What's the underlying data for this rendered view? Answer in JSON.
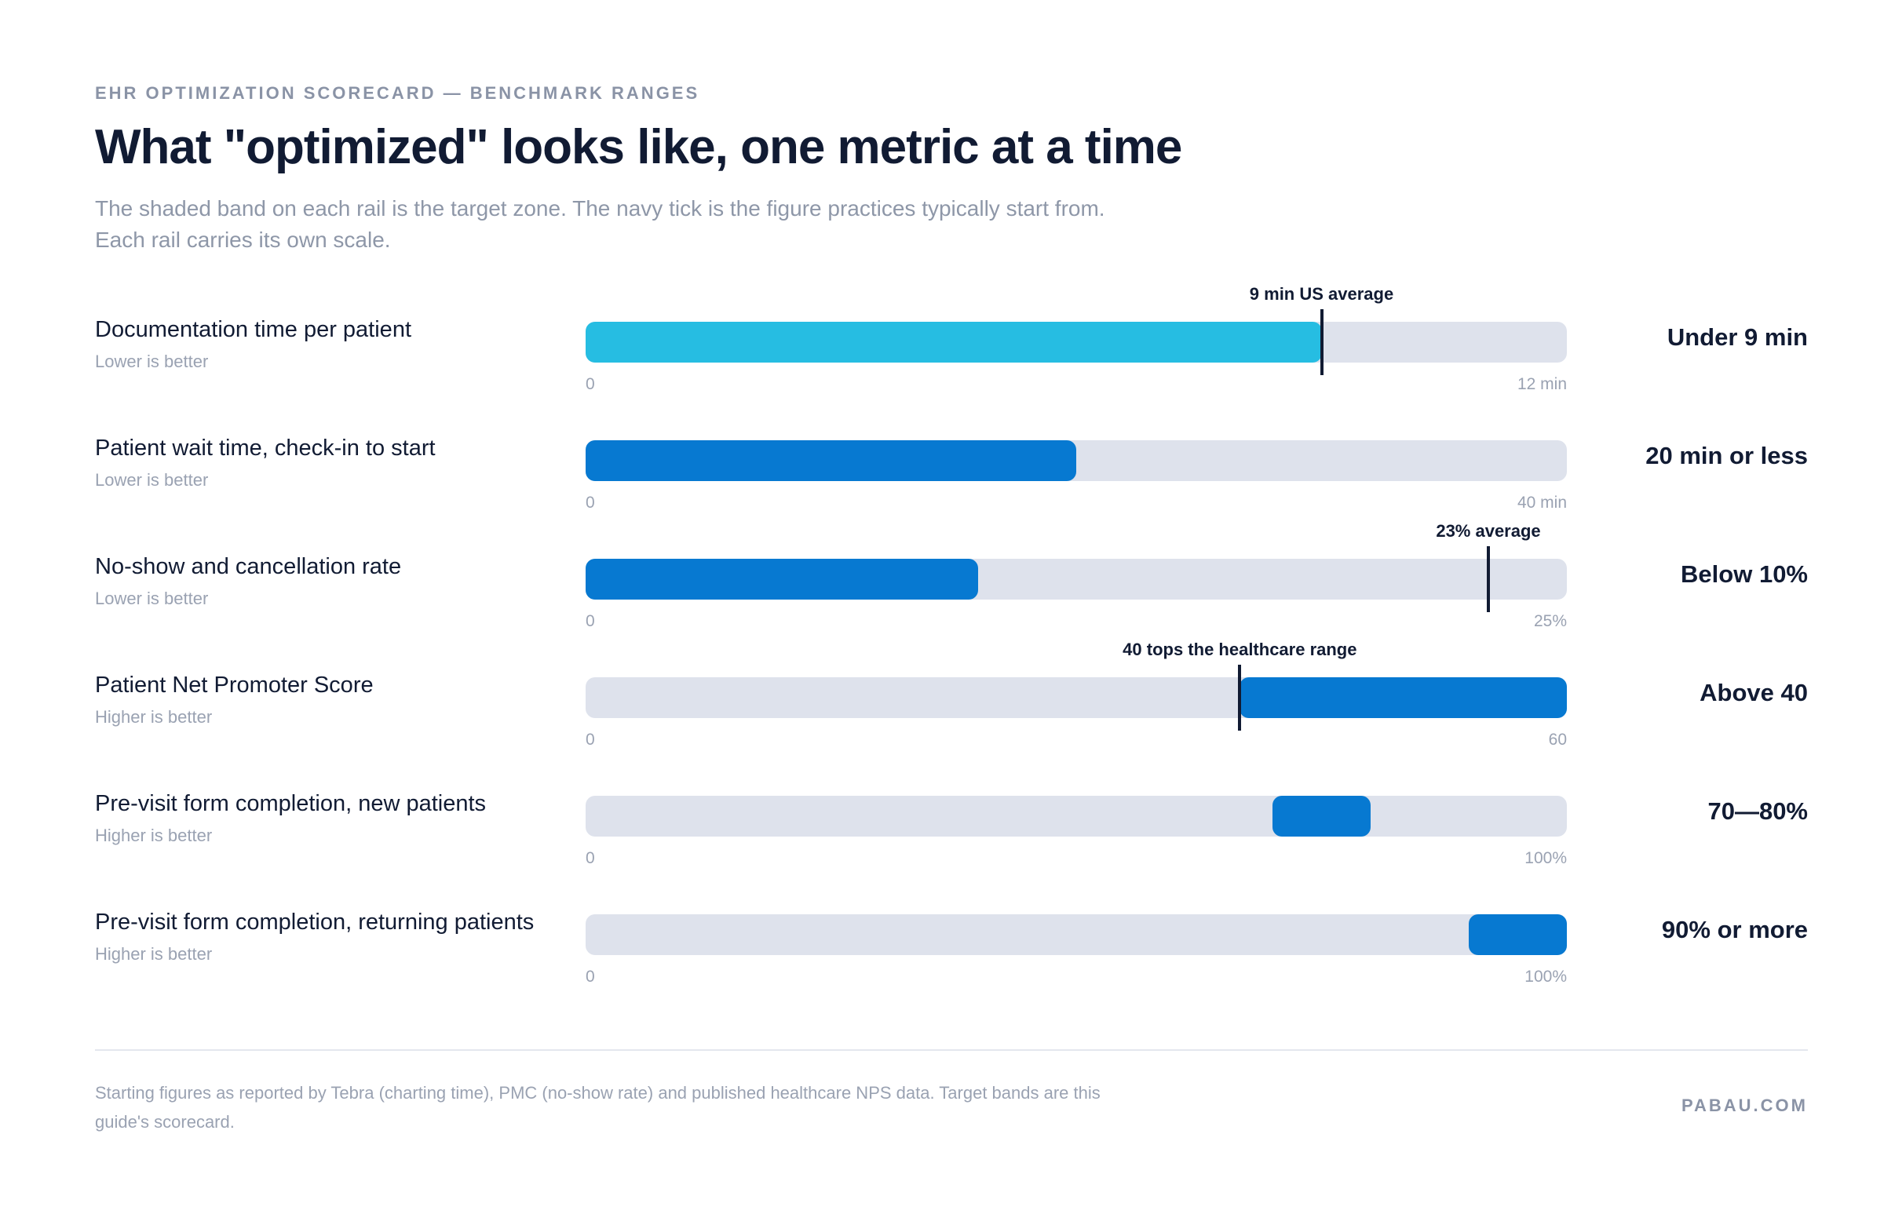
{
  "header": {
    "eyebrow": "EHR OPTIMIZATION SCORECARD — BENCHMARK RANGES",
    "title": "What \"optimized\" looks like, one metric at a time",
    "subtitle": "The shaded band on each rail is the target zone. The navy tick is the figure practices typically start from. Each rail carries its own scale."
  },
  "colors": {
    "rail": "#dee2ec",
    "band_light": "#26bde2",
    "band": "#0779d1",
    "tick": "#111b33"
  },
  "chart_data": {
    "type": "bar",
    "rows": [
      {
        "label": "Documentation time per patient",
        "direction": "Lower is better",
        "min": 0,
        "max": 12,
        "min_label": "0",
        "max_label": "12 min",
        "band": [
          0,
          9
        ],
        "band_color": "band_light",
        "tick": 9,
        "tick_label": "9 min US average",
        "target": "Under 9 min"
      },
      {
        "label": "Patient wait time, check-in to start",
        "direction": "Lower is better",
        "min": 0,
        "max": 40,
        "min_label": "0",
        "max_label": "40 min",
        "band": [
          0,
          20
        ],
        "band_color": "band",
        "tick": null,
        "tick_label": "",
        "target": "20 min or less"
      },
      {
        "label": "No-show and cancellation rate",
        "direction": "Lower is better",
        "min": 0,
        "max": 25,
        "min_label": "0",
        "max_label": "25%",
        "band": [
          0,
          10
        ],
        "band_color": "band",
        "tick": 23,
        "tick_label": "23% average",
        "target": "Below 10%"
      },
      {
        "label": "Patient Net Promoter Score",
        "direction": "Higher is better",
        "min": 0,
        "max": 60,
        "min_label": "0",
        "max_label": "60",
        "band": [
          40,
          60
        ],
        "band_color": "band",
        "tick": 40,
        "tick_label": "40 tops the healthcare range",
        "target": "Above 40"
      },
      {
        "label": "Pre-visit form completion, new patients",
        "direction": "Higher is better",
        "min": 0,
        "max": 100,
        "min_label": "0",
        "max_label": "100%",
        "band": [
          70,
          80
        ],
        "band_color": "band",
        "tick": null,
        "tick_label": "",
        "target": "70—80%"
      },
      {
        "label": "Pre-visit form completion, returning patients",
        "direction": "Higher is better",
        "min": 0,
        "max": 100,
        "min_label": "0",
        "max_label": "100%",
        "band": [
          90,
          100
        ],
        "band_color": "band",
        "tick": null,
        "tick_label": "",
        "target": "90% or more"
      }
    ]
  },
  "footer": {
    "note": "Starting figures as reported by Tebra (charting time), PMC (no-show rate) and published healthcare NPS data. Target bands are this guide's scorecard.",
    "brand": "PABAU.COM"
  }
}
